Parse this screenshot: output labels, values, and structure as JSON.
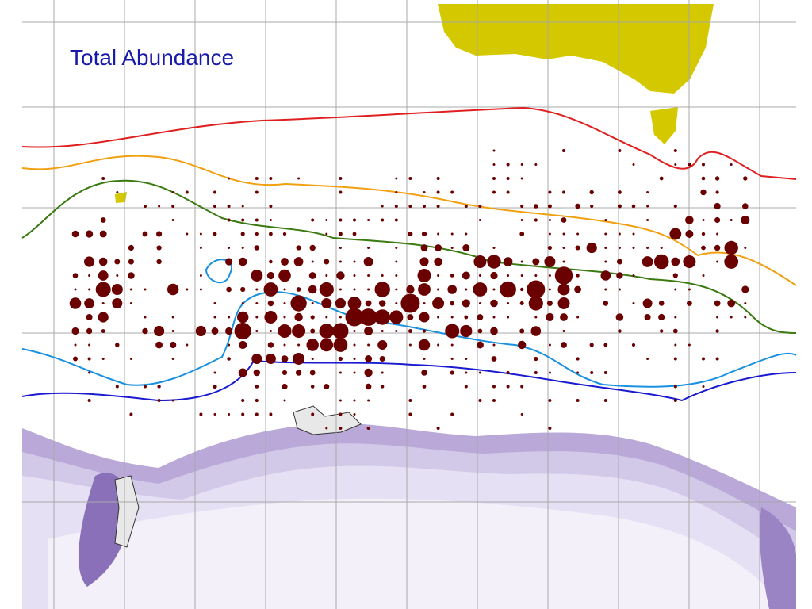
{
  "title": "Total Abundance"
}
